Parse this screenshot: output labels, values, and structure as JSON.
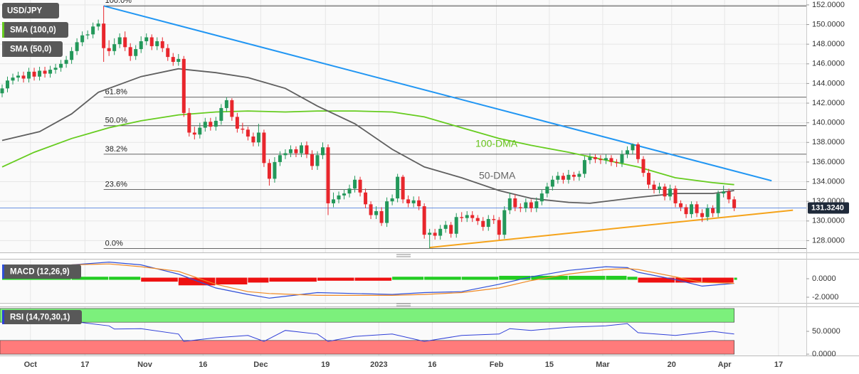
{
  "chart_data": [
    {
      "type": "candlestick",
      "title": "USD/JPY",
      "open": [
        143.0,
        143.5,
        144.3,
        144.6,
        144.8,
        144.5,
        145.2,
        144.7,
        145.3,
        145.0,
        145.4,
        145.6,
        146.0,
        146.4,
        147.3,
        148.2,
        148.9,
        149.0,
        149.8,
        150.1,
        147.6,
        147.3,
        148.0,
        148.7,
        147.7,
        146.8,
        147.5,
        148.3,
        148.7,
        147.8,
        148.3,
        147.6,
        146.7,
        146.2,
        146.5,
        141.0,
        139.0,
        138.8,
        139.5,
        140.1,
        139.6,
        140.2,
        141.5,
        142.3,
        140.6,
        139.4,
        139.3,
        138.6,
        138.0,
        139.0,
        135.9,
        134.3,
        136.0,
        136.7,
        136.9,
        137.3,
        136.9,
        137.7,
        136.8,
        135.6,
        136.7,
        137.5,
        131.8,
        132.2,
        132.6,
        132.8,
        133.3,
        134.2,
        132.9,
        131.7,
        130.6,
        131.0,
        129.8,
        132.0,
        132.3,
        134.5,
        132.2,
        131.8,
        132.1,
        131.5,
        128.6,
        128.8,
        128.5,
        129.2,
        129.6,
        128.7,
        130.4,
        130.3,
        130.6,
        130.3,
        130.0,
        129.4,
        130.2,
        130.1,
        128.6,
        131.1,
        132.3,
        131.4,
        131.3,
        131.9,
        131.3,
        132.0,
        132.8,
        133.5,
        134.2,
        134.6,
        134.2,
        134.7,
        134.5,
        134.8,
        136.2,
        136.5,
        136.3,
        136.2,
        136.4,
        136.0,
        135.9,
        136.8,
        137.2,
        137.8,
        136.3,
        134.9,
        133.7,
        133.2,
        133.5,
        132.5,
        133.3,
        131.8,
        131.4,
        130.7,
        131.7,
        130.8,
        130.4,
        131.3,
        130.8,
        132.8,
        133.0,
        132.2
      ],
      "high": [
        143.9,
        144.7,
        145.0,
        145.2,
        145.2,
        145.6,
        145.6,
        145.7,
        145.7,
        145.8,
        146.0,
        146.4,
        146.8,
        147.7,
        148.6,
        149.3,
        149.4,
        150.2,
        150.5,
        151.9,
        148.4,
        148.6,
        149.1,
        149.3,
        148.1,
        147.9,
        148.8,
        149.1,
        149.0,
        148.7,
        148.7,
        148.0,
        147.1,
        147.0,
        146.8,
        141.5,
        139.6,
        140.0,
        140.5,
        140.5,
        140.6,
        141.9,
        142.6,
        142.5,
        141.0,
        140.0,
        139.6,
        139.0,
        139.9,
        139.3,
        136.3,
        136.5,
        137.1,
        137.3,
        137.7,
        137.6,
        138.0,
        138.1,
        137.2,
        137.1,
        138.0,
        137.8,
        132.9,
        133.0,
        133.2,
        133.7,
        134.6,
        134.5,
        133.3,
        132.0,
        131.5,
        131.4,
        132.4,
        132.7,
        134.8,
        134.7,
        132.6,
        132.5,
        132.5,
        131.8,
        129.2,
        129.2,
        129.6,
        130.0,
        129.9,
        130.8,
        130.9,
        131.0,
        131.0,
        130.6,
        130.4,
        130.6,
        130.6,
        130.4,
        131.5,
        132.9,
        132.7,
        131.8,
        132.3,
        132.2,
        132.4,
        133.2,
        133.9,
        134.6,
        135.0,
        134.9,
        135.2,
        135.0,
        135.1,
        136.6,
        136.9,
        136.8,
        136.7,
        136.8,
        136.7,
        136.3,
        137.2,
        137.6,
        137.9,
        138.0,
        136.6,
        135.3,
        134.1,
        133.9,
        133.8,
        133.7,
        133.6,
        132.1,
        131.7,
        132.0,
        132.0,
        131.2,
        131.7,
        131.6,
        133.1,
        133.6,
        133.3,
        132.5
      ],
      "low": [
        142.6,
        143.1,
        143.9,
        144.2,
        144.1,
        144.1,
        144.3,
        144.3,
        144.6,
        144.6,
        145.0,
        145.2,
        145.6,
        146.0,
        146.9,
        147.8,
        148.5,
        148.6,
        149.4,
        146.2,
        146.8,
        146.9,
        147.6,
        147.3,
        146.3,
        146.4,
        147.1,
        147.9,
        147.4,
        147.4,
        147.2,
        146.3,
        145.8,
        145.8,
        140.6,
        138.6,
        138.3,
        138.4,
        139.1,
        139.2,
        139.2,
        139.8,
        141.1,
        140.2,
        139.0,
        138.9,
        138.2,
        137.6,
        137.6,
        135.5,
        133.6,
        133.9,
        135.6,
        136.3,
        136.5,
        136.5,
        136.5,
        136.4,
        135.2,
        135.2,
        136.3,
        130.6,
        131.4,
        131.8,
        132.2,
        132.4,
        132.9,
        132.5,
        131.3,
        130.2,
        130.2,
        129.5,
        129.4,
        131.6,
        131.9,
        131.8,
        131.4,
        131.4,
        131.1,
        128.2,
        127.2,
        128.1,
        128.1,
        128.8,
        128.3,
        128.3,
        129.9,
        129.9,
        129.9,
        129.6,
        129.0,
        129.0,
        129.7,
        128.1,
        128.2,
        130.7,
        131.0,
        130.9,
        130.9,
        130.9,
        130.9,
        131.6,
        132.4,
        133.1,
        133.8,
        133.8,
        133.8,
        134.1,
        134.1,
        134.4,
        135.8,
        135.9,
        135.8,
        135.8,
        135.6,
        135.5,
        135.5,
        136.4,
        136.8,
        135.9,
        134.5,
        133.3,
        132.8,
        132.8,
        132.1,
        132.1,
        131.4,
        131.0,
        130.3,
        130.3,
        130.4,
        129.9,
        130.0,
        130.4,
        130.4,
        132.4,
        131.8,
        131.0
      ],
      "close": [
        143.5,
        144.3,
        144.6,
        144.8,
        144.5,
        145.2,
        144.7,
        145.3,
        145.0,
        145.4,
        145.6,
        146.0,
        146.4,
        147.3,
        148.2,
        148.9,
        149.0,
        149.8,
        150.1,
        147.6,
        147.3,
        148.0,
        148.7,
        147.7,
        146.8,
        147.5,
        148.3,
        148.7,
        147.8,
        148.3,
        147.6,
        146.7,
        146.2,
        146.5,
        141.0,
        139.0,
        138.8,
        139.5,
        140.1,
        139.6,
        140.2,
        141.5,
        142.3,
        140.6,
        139.4,
        139.3,
        138.6,
        138.0,
        139.0,
        135.9,
        134.3,
        136.0,
        136.7,
        136.9,
        137.3,
        136.9,
        137.7,
        136.8,
        135.6,
        136.7,
        137.5,
        131.8,
        132.2,
        132.6,
        132.8,
        133.3,
        134.2,
        132.9,
        131.7,
        130.6,
        131.0,
        129.8,
        132.0,
        132.3,
        134.5,
        132.2,
        131.8,
        132.1,
        131.5,
        128.6,
        128.8,
        128.5,
        129.2,
        129.6,
        128.7,
        130.4,
        130.3,
        130.6,
        130.3,
        130.0,
        129.4,
        130.2,
        130.1,
        128.6,
        131.1,
        132.3,
        131.4,
        131.3,
        131.9,
        131.3,
        132.0,
        132.8,
        133.5,
        134.2,
        134.6,
        134.2,
        134.7,
        134.5,
        134.8,
        136.2,
        136.5,
        136.3,
        136.2,
        136.4,
        136.0,
        135.9,
        136.8,
        137.2,
        137.8,
        136.3,
        134.9,
        133.7,
        133.2,
        133.5,
        132.5,
        133.3,
        131.8,
        131.4,
        130.7,
        131.7,
        130.8,
        130.4,
        131.3,
        130.8,
        132.8,
        133.0,
        132.2,
        131.324
      ],
      "up_color": "#23985a",
      "down_color": "#e8262c",
      "overlays": [
        {
          "name": "SMA (100,0)",
          "label": "100-DMA",
          "color": "#66cc1f",
          "x": [
            0,
            6,
            13,
            20,
            26,
            33,
            40,
            46,
            53,
            59,
            66,
            73,
            79,
            86,
            93,
            99,
            106,
            113,
            119,
            126,
            133,
            137
          ],
          "values": [
            135.5,
            137.0,
            138.4,
            139.5,
            140.2,
            140.8,
            141.1,
            141.2,
            141.1,
            141.2,
            141.2,
            141.1,
            140.6,
            139.5,
            138.4,
            137.7,
            137.0,
            136.2,
            135.5,
            134.4,
            133.9,
            133.7
          ]
        },
        {
          "name": "SMA (50,0)",
          "label": "50-DMA",
          "color": "#5f5f5f",
          "x": [
            0,
            7,
            13,
            18,
            26,
            33,
            40,
            46,
            53,
            59,
            66,
            73,
            79,
            86,
            93,
            99,
            106,
            110,
            119,
            126,
            133,
            137
          ],
          "values": [
            138.2,
            139.1,
            140.9,
            143.1,
            144.7,
            145.5,
            145.1,
            144.6,
            143.5,
            141.7,
            139.9,
            137.3,
            135.5,
            134.4,
            133.1,
            132.3,
            131.9,
            131.8,
            132.4,
            132.8,
            132.8,
            133.1
          ]
        }
      ],
      "trendlines": [
        {
          "color": "#2196f3",
          "x": [
            19,
            144
          ],
          "values": [
            151.9,
            134.1
          ]
        },
        {
          "color": "#f5a31a",
          "x": [
            80,
            148
          ],
          "values": [
            127.3,
            131.1
          ]
        }
      ],
      "fib_levels": [
        {
          "label": "100.0%",
          "value": 151.9
        },
        {
          "label": "61.8%",
          "value": 142.6
        },
        {
          "label": "50.0%",
          "value": 139.7
        },
        {
          "label": "38.2%",
          "value": 136.8
        },
        {
          "label": "23.6%",
          "value": 133.2
        },
        {
          "label": "0.0%",
          "value": 127.2
        }
      ],
      "last_price": 131.324,
      "last_price_label": "131.3240",
      "xlim": [
        -0.4,
        150.5
      ],
      "xticks": [
        {
          "value": 5.3,
          "label": "Oct"
        },
        {
          "value": 15.5,
          "label": "17"
        },
        {
          "value": 26.7,
          "label": "Nov"
        },
        {
          "value": 37.6,
          "label": "16"
        },
        {
          "value": 48.4,
          "label": "Dec"
        },
        {
          "value": 60.5,
          "label": "19"
        },
        {
          "value": 70.5,
          "label": "2023"
        },
        {
          "value": 80.5,
          "label": "16"
        },
        {
          "value": 92.5,
          "label": "Feb"
        },
        {
          "value": 102.4,
          "label": "15"
        },
        {
          "value": 112.4,
          "label": "Mar"
        },
        {
          "value": 125.3,
          "label": "20"
        },
        {
          "value": 135.2,
          "label": "Apr"
        },
        {
          "value": 145.3,
          "label": "17"
        }
      ],
      "ylim": [
        126.8,
        152.5
      ],
      "yticks": [
        {
          "value": 128,
          "label": "128.0000"
        },
        {
          "value": 130,
          "label": "130.0000"
        },
        {
          "value": 132,
          "label": "132.0000"
        },
        {
          "value": 134,
          "label": "134.0000"
        },
        {
          "value": 136,
          "label": "136.0000"
        },
        {
          "value": 138,
          "label": "138.0000"
        },
        {
          "value": 140,
          "label": "140.0000"
        },
        {
          "value": 142,
          "label": "142.0000"
        },
        {
          "value": 144,
          "label": "144.0000"
        },
        {
          "value": 146,
          "label": "146.0000"
        },
        {
          "value": 148,
          "label": "148.0000"
        },
        {
          "value": 150,
          "label": "150.0000"
        },
        {
          "value": 152,
          "label": "152.0000"
        }
      ],
      "grid": true
    },
    {
      "type": "macd",
      "title": "MACD (12,26,9)",
      "x": [
        0,
        13,
        20,
        26,
        33,
        40,
        46,
        50,
        59,
        66,
        73,
        79,
        86,
        93,
        99,
        106,
        113,
        117,
        119,
        126,
        131,
        137
      ],
      "series": [
        {
          "color": "#2f4fd8",
          "values": [
            1.2,
            1.5,
            1.8,
            1.5,
            0.5,
            -1.0,
            -1.7,
            -2.1,
            -1.5,
            -1.6,
            -1.7,
            -1.5,
            -1.4,
            -0.6,
            0.2,
            0.9,
            1.3,
            1.2,
            0.7,
            -0.1,
            -0.8,
            -0.5
          ]
        },
        {
          "color": "#f08a24",
          "values": [
            0.9,
            1.5,
            1.6,
            1.3,
            0.8,
            -0.6,
            -1.4,
            -1.6,
            -1.8,
            -1.8,
            -1.8,
            -1.7,
            -1.5,
            -1.0,
            -0.2,
            0.5,
            1.0,
            1.1,
            1.0,
            0.2,
            -0.4,
            -0.5
          ]
        }
      ],
      "histogram": [
        0.1,
        0.1,
        0.1,
        -0.2,
        -0.6,
        -0.5,
        -0.3,
        -0.2,
        -0.1,
        -0.1,
        0.1,
        0.1,
        0.1,
        0.2,
        0.2,
        0.2,
        0.2,
        0.1,
        -0.3,
        -0.3,
        -0.3,
        0.0
      ],
      "up_color": "#22cc22",
      "down_color": "#ee1111",
      "ylim": [
        -2.54,
        2.08
      ],
      "yticks": [
        {
          "value": 0,
          "label": "0.0000"
        },
        {
          "value": -2,
          "label": "-2.0000"
        }
      ]
    },
    {
      "type": "rsi",
      "title": "RSI (14,70,30,1)",
      "x": [
        0,
        7,
        13,
        20,
        21,
        26,
        33,
        34,
        40,
        46,
        49,
        53,
        59,
        61,
        66,
        73,
        79,
        86,
        93,
        95,
        99,
        106,
        113,
        117,
        119,
        126,
        133,
        137
      ],
      "values": [
        67,
        67,
        72,
        62,
        55,
        56,
        44,
        28,
        36,
        41,
        28,
        52,
        44,
        28,
        39,
        44,
        28,
        41,
        44,
        56,
        52,
        59,
        62,
        67,
        47,
        41,
        50,
        44
      ],
      "color": "#2f3fd8",
      "bands": [
        {
          "from": 70,
          "to": 100,
          "color": "#7cf07c"
        },
        {
          "from": 0,
          "to": 30,
          "color": "#ff7b7b"
        }
      ],
      "ylim": [
        -3,
        103
      ],
      "yticks": [
        {
          "value": 50,
          "label": "50.0000"
        },
        {
          "value": 0,
          "label": "0.0000"
        }
      ]
    }
  ]
}
